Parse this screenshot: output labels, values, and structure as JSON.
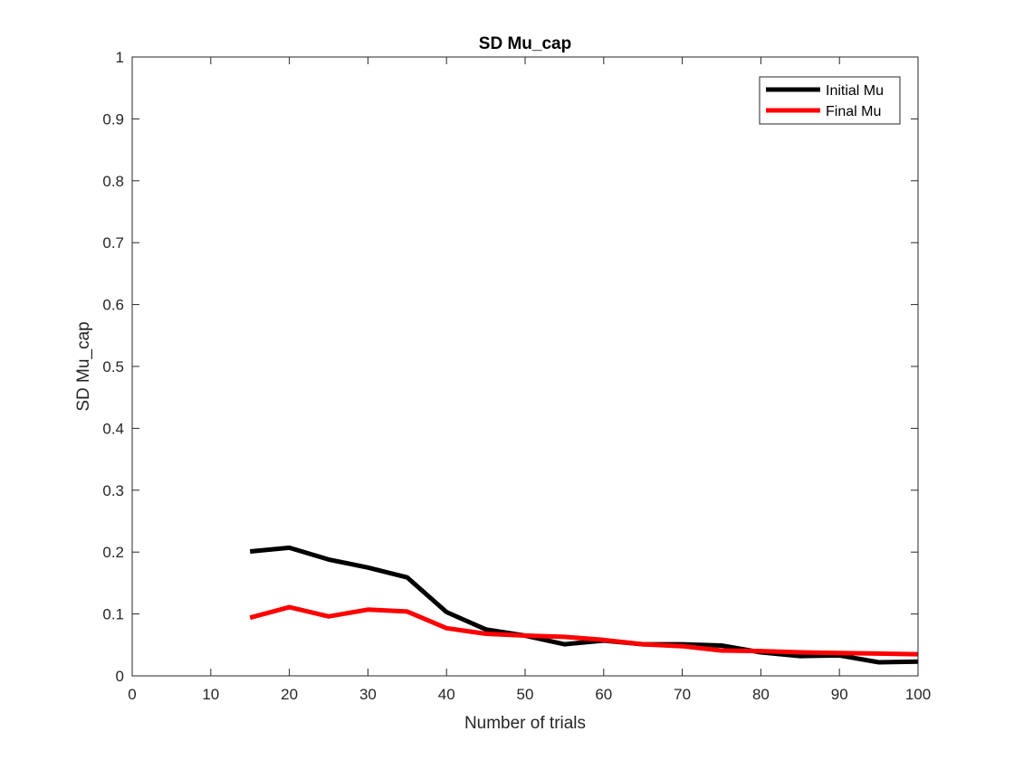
{
  "chart_data": {
    "type": "line",
    "title": "SD Mu_cap",
    "xlabel": "Number of trials",
    "ylabel": "SD Mu_cap",
    "xlim": [
      0,
      100
    ],
    "ylim": [
      0,
      1
    ],
    "xticks": [
      0,
      10,
      20,
      30,
      40,
      50,
      60,
      70,
      80,
      90,
      100
    ],
    "xtick_labels": [
      "0",
      "10",
      "20",
      "30",
      "40",
      "50",
      "60",
      "70",
      "80",
      "90",
      "100"
    ],
    "yticks": [
      0,
      0.1,
      0.2,
      0.3,
      0.4,
      0.5,
      0.6,
      0.7,
      0.8,
      0.9,
      1
    ],
    "ytick_labels": [
      "0",
      "0.1",
      "0.2",
      "0.3",
      "0.4",
      "0.5",
      "0.6",
      "0.7",
      "0.8",
      "0.9",
      "1"
    ],
    "grid": false,
    "legend_position": "top-right",
    "x": [
      15,
      20,
      25,
      30,
      35,
      40,
      45,
      50,
      55,
      60,
      65,
      70,
      75,
      80,
      85,
      90,
      95,
      100
    ],
    "series": [
      {
        "name": "Initial Mu",
        "color": "#000000",
        "values": [
          0.201,
          0.207,
          0.188,
          0.175,
          0.159,
          0.103,
          0.075,
          0.065,
          0.051,
          0.057,
          0.051,
          0.051,
          0.049,
          0.038,
          0.032,
          0.033,
          0.022,
          0.023
        ]
      },
      {
        "name": "Final Mu",
        "color": "#ff0000",
        "values": [
          0.094,
          0.111,
          0.096,
          0.107,
          0.104,
          0.077,
          0.068,
          0.065,
          0.063,
          0.058,
          0.051,
          0.048,
          0.041,
          0.04,
          0.038,
          0.037,
          0.036,
          0.035
        ]
      }
    ]
  }
}
